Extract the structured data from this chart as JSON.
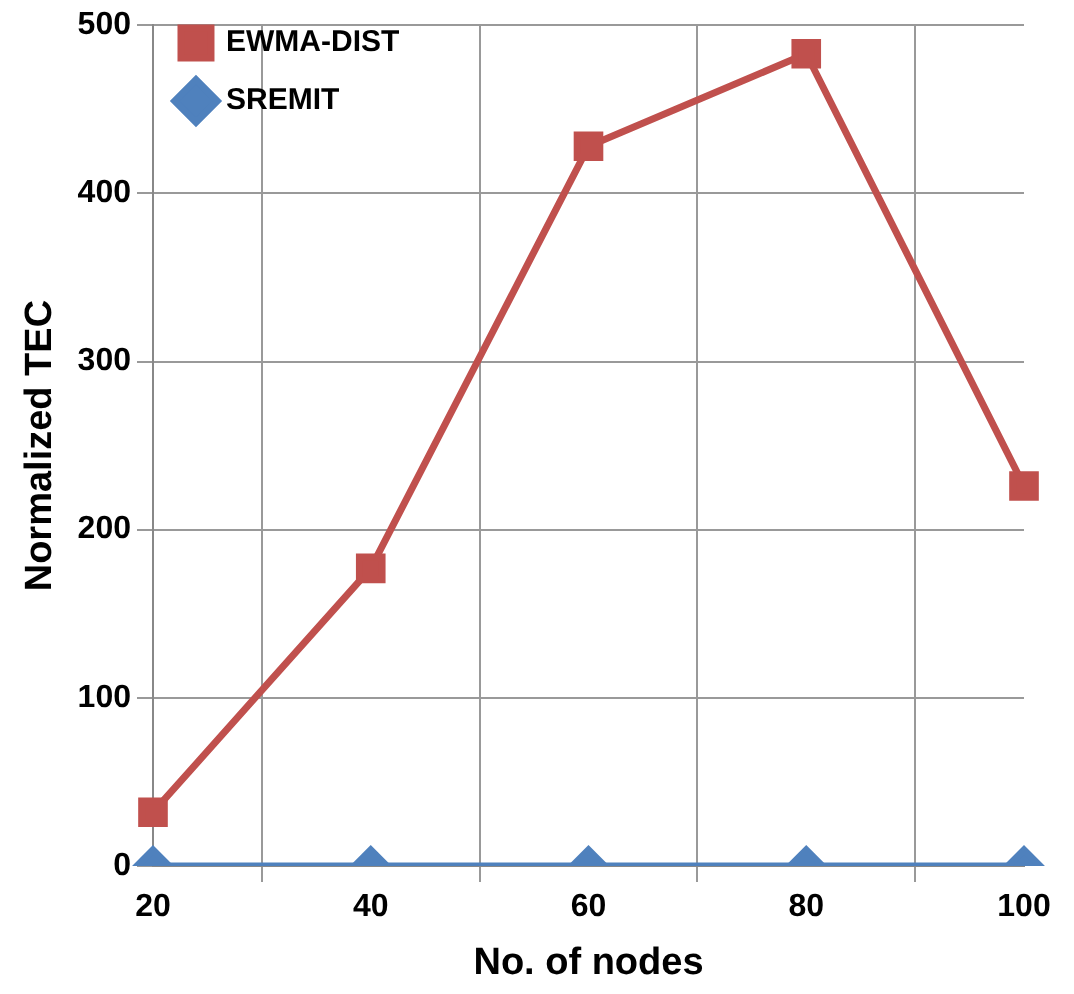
{
  "chart_data": {
    "type": "line",
    "xlabel": "No. of nodes",
    "ylabel": "Normalized TEC",
    "categories": [
      "20",
      "40",
      "60",
      "80",
      "100"
    ],
    "series": [
      {
        "name": "EWMA-DIST",
        "color": "#c0504d",
        "marker": "square",
        "values": [
          32,
          177,
          428,
          483,
          226
        ]
      },
      {
        "name": "SREMIT",
        "color": "#4f81bd",
        "marker": "diamond",
        "values": [
          0,
          0,
          0,
          0,
          0
        ]
      }
    ],
    "ylim": [
      0,
      500
    ],
    "yticks": [
      0,
      100,
      200,
      300,
      400,
      500
    ],
    "grid": true,
    "legend": "top left",
    "line_style": "solid"
  }
}
